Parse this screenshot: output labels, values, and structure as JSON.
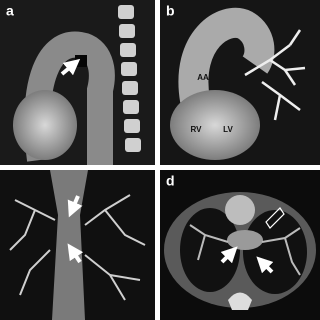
{
  "panels": [
    {
      "label": "a"
    },
    {
      "label": "b",
      "annotations": [
        "AA",
        "RV",
        "LV"
      ]
    },
    {
      "label": "d"
    }
  ]
}
